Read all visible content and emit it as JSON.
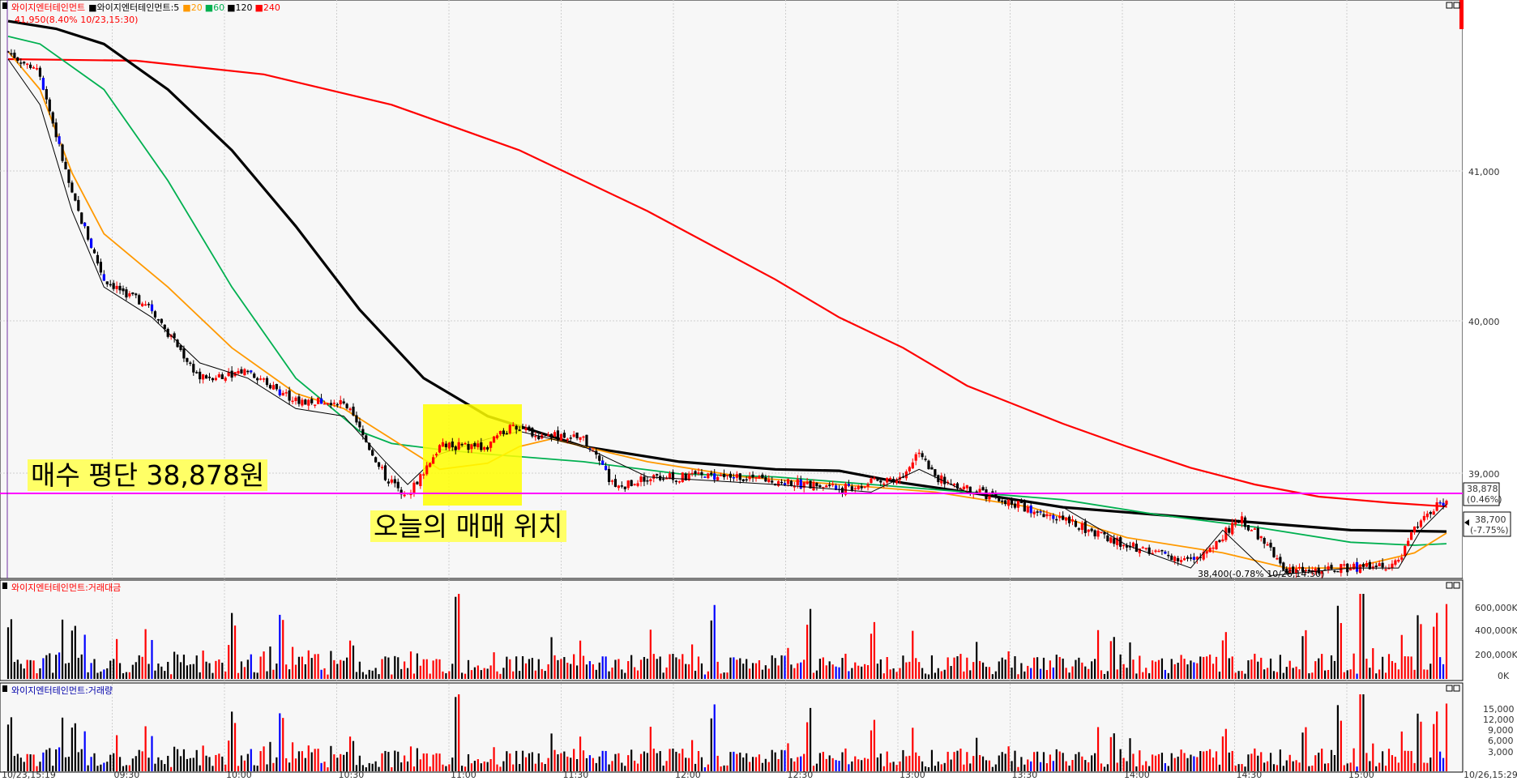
{
  "price_panel": {
    "legend": {
      "stock": "와이지엔터테인먼트",
      "ma_label": "와이지엔터테인먼트:5",
      "ma20": "20",
      "ma60": "60",
      "ma120": "120",
      "ma240": "240"
    },
    "high_note": "41,950(8.40% 10/23,15:30)",
    "low_note": "38,400(-0.78% 10/26,14:50)",
    "avg_label": "38,878",
    "avg_pct": "(0.46%)",
    "cur_label": "38,700",
    "cur_pct": "(-7.75%)",
    "y_ticks": [
      "41,000",
      "40,000",
      "39,000"
    ]
  },
  "amount_panel": {
    "title": "와이지엔터테인먼트:거래대금",
    "y_ticks": [
      "600,000K",
      "400,000K",
      "200,000K",
      "0K"
    ]
  },
  "volume_panel": {
    "title": "와이지엔터테인먼트:거래량",
    "y_ticks": [
      "15,000",
      "12,000",
      "9,000",
      "6,000",
      "3,000"
    ]
  },
  "x_ticks": [
    "10/23,15:19",
    "09:30",
    "10:00",
    "10:30",
    "11:00",
    "11:30",
    "12:00",
    "12:30",
    "13:00",
    "13:30",
    "14:00",
    "14:30",
    "15:00",
    "10/26,15:29"
  ],
  "annotations": {
    "avg_price": "매수 평단 38,878원",
    "trade_spot": "오늘의 매매 위치"
  },
  "colors": {
    "up": "#ff0000",
    "down": "#000000",
    "down_strong": "#0000ff",
    "ma5": "#000000",
    "ma20": "#ff9900",
    "ma60": "#00b050",
    "ma120": "#000000",
    "ma240": "#ff0000",
    "avg_line": "#ff00ff",
    "highlight": "#ffff00"
  },
  "chart_data": {
    "type": "candlestick",
    "price_axis_ticks": [
      41000,
      40000,
      39000
    ],
    "key_values": {
      "high": 41950,
      "low": 38400,
      "avg_buy_price": 38878,
      "current": 38700
    },
    "ma240": [
      [
        0,
        41800
      ],
      [
        40,
        41790
      ],
      [
        80,
        41700
      ],
      [
        120,
        41500
      ],
      [
        160,
        41200
      ],
      [
        200,
        40800
      ],
      [
        240,
        40350
      ],
      [
        260,
        40100
      ],
      [
        280,
        39900
      ],
      [
        300,
        39650
      ],
      [
        330,
        39400
      ],
      [
        350,
        39250
      ],
      [
        370,
        39110
      ],
      [
        390,
        39000
      ],
      [
        410,
        38920
      ],
      [
        432,
        38880
      ],
      [
        450,
        38855
      ]
    ],
    "ma120": [
      [
        0,
        42050
      ],
      [
        15,
        42000
      ],
      [
        30,
        41900
      ],
      [
        50,
        41600
      ],
      [
        70,
        41200
      ],
      [
        90,
        40700
      ],
      [
        110,
        40150
      ],
      [
        130,
        39700
      ],
      [
        150,
        39450
      ],
      [
        180,
        39250
      ],
      [
        210,
        39150
      ],
      [
        240,
        39100
      ],
      [
        260,
        39090
      ],
      [
        280,
        39010
      ],
      [
        300,
        38950
      ],
      [
        330,
        38850
      ],
      [
        360,
        38800
      ],
      [
        390,
        38750
      ],
      [
        420,
        38700
      ],
      [
        450,
        38690
      ]
    ],
    "ma60": [
      [
        0,
        41950
      ],
      [
        10,
        41900
      ],
      [
        30,
        41600
      ],
      [
        50,
        41000
      ],
      [
        70,
        40300
      ],
      [
        90,
        39700
      ],
      [
        110,
        39350
      ],
      [
        120,
        39270
      ],
      [
        135,
        39230
      ],
      [
        150,
        39200
      ],
      [
        180,
        39150
      ],
      [
        210,
        39070
      ],
      [
        240,
        39050
      ],
      [
        270,
        39000
      ],
      [
        300,
        38950
      ],
      [
        330,
        38900
      ],
      [
        360,
        38800
      ],
      [
        390,
        38720
      ],
      [
        420,
        38620
      ],
      [
        440,
        38600
      ],
      [
        450,
        38610
      ]
    ],
    "ma20": [
      [
        0,
        41850
      ],
      [
        10,
        41600
      ],
      [
        20,
        41050
      ],
      [
        30,
        40650
      ],
      [
        50,
        40300
      ],
      [
        70,
        39900
      ],
      [
        90,
        39600
      ],
      [
        105,
        39500
      ],
      [
        120,
        39300
      ],
      [
        135,
        39100
      ],
      [
        150,
        39140
      ],
      [
        160,
        39250
      ],
      [
        170,
        39300
      ],
      [
        180,
        39250
      ],
      [
        200,
        39150
      ],
      [
        230,
        39050
      ],
      [
        260,
        39000
      ],
      [
        290,
        38950
      ],
      [
        320,
        38850
      ],
      [
        350,
        38650
      ],
      [
        380,
        38550
      ],
      [
        400,
        38450
      ],
      [
        420,
        38450
      ],
      [
        440,
        38550
      ],
      [
        450,
        38680
      ]
    ],
    "ma5": [
      [
        0,
        41800
      ],
      [
        10,
        41500
      ],
      [
        20,
        40800
      ],
      [
        30,
        40300
      ],
      [
        45,
        40100
      ],
      [
        60,
        39800
      ],
      [
        75,
        39700
      ],
      [
        90,
        39500
      ],
      [
        105,
        39450
      ],
      [
        118,
        39150
      ],
      [
        125,
        39000
      ],
      [
        135,
        39200
      ],
      [
        150,
        39300
      ],
      [
        160,
        39350
      ],
      [
        170,
        39300
      ],
      [
        180,
        39250
      ],
      [
        200,
        39050
      ],
      [
        240,
        39000
      ],
      [
        270,
        38950
      ],
      [
        285,
        39100
      ],
      [
        300,
        38950
      ],
      [
        330,
        38850
      ],
      [
        350,
        38600
      ],
      [
        370,
        38450
      ],
      [
        380,
        38700
      ],
      [
        395,
        38400
      ],
      [
        420,
        38450
      ],
      [
        435,
        38450
      ],
      [
        442,
        38700
      ],
      [
        450,
        38870
      ]
    ],
    "price_anchors": [
      [
        0,
        41850
      ],
      [
        10,
        41700
      ],
      [
        20,
        40900
      ],
      [
        30,
        40350
      ],
      [
        45,
        40150
      ],
      [
        60,
        39700
      ],
      [
        75,
        39750
      ],
      [
        90,
        39550
      ],
      [
        105,
        39550
      ],
      [
        118,
        39050
      ],
      [
        125,
        38930
      ],
      [
        135,
        39250
      ],
      [
        150,
        39250
      ],
      [
        158,
        39400
      ],
      [
        165,
        39330
      ],
      [
        180,
        39300
      ],
      [
        190,
        38970
      ],
      [
        200,
        39050
      ],
      [
        230,
        39050
      ],
      [
        260,
        38970
      ],
      [
        280,
        39050
      ],
      [
        285,
        39230
      ],
      [
        290,
        39050
      ],
      [
        300,
        38970
      ],
      [
        330,
        38770
      ],
      [
        350,
        38600
      ],
      [
        370,
        38500
      ],
      [
        378,
        38620
      ],
      [
        385,
        38780
      ],
      [
        392,
        38650
      ],
      [
        400,
        38430
      ],
      [
        420,
        38450
      ],
      [
        435,
        38480
      ],
      [
        440,
        38700
      ],
      [
        448,
        38880
      ],
      [
        450,
        38880
      ]
    ],
    "volume_series_available": true,
    "amount_axis_ticks": [
      "600,000K",
      "400,000K",
      "200,000K",
      "0K"
    ],
    "volume_axis_ticks": [
      15000,
      12000,
      9000,
      6000,
      3000
    ]
  }
}
